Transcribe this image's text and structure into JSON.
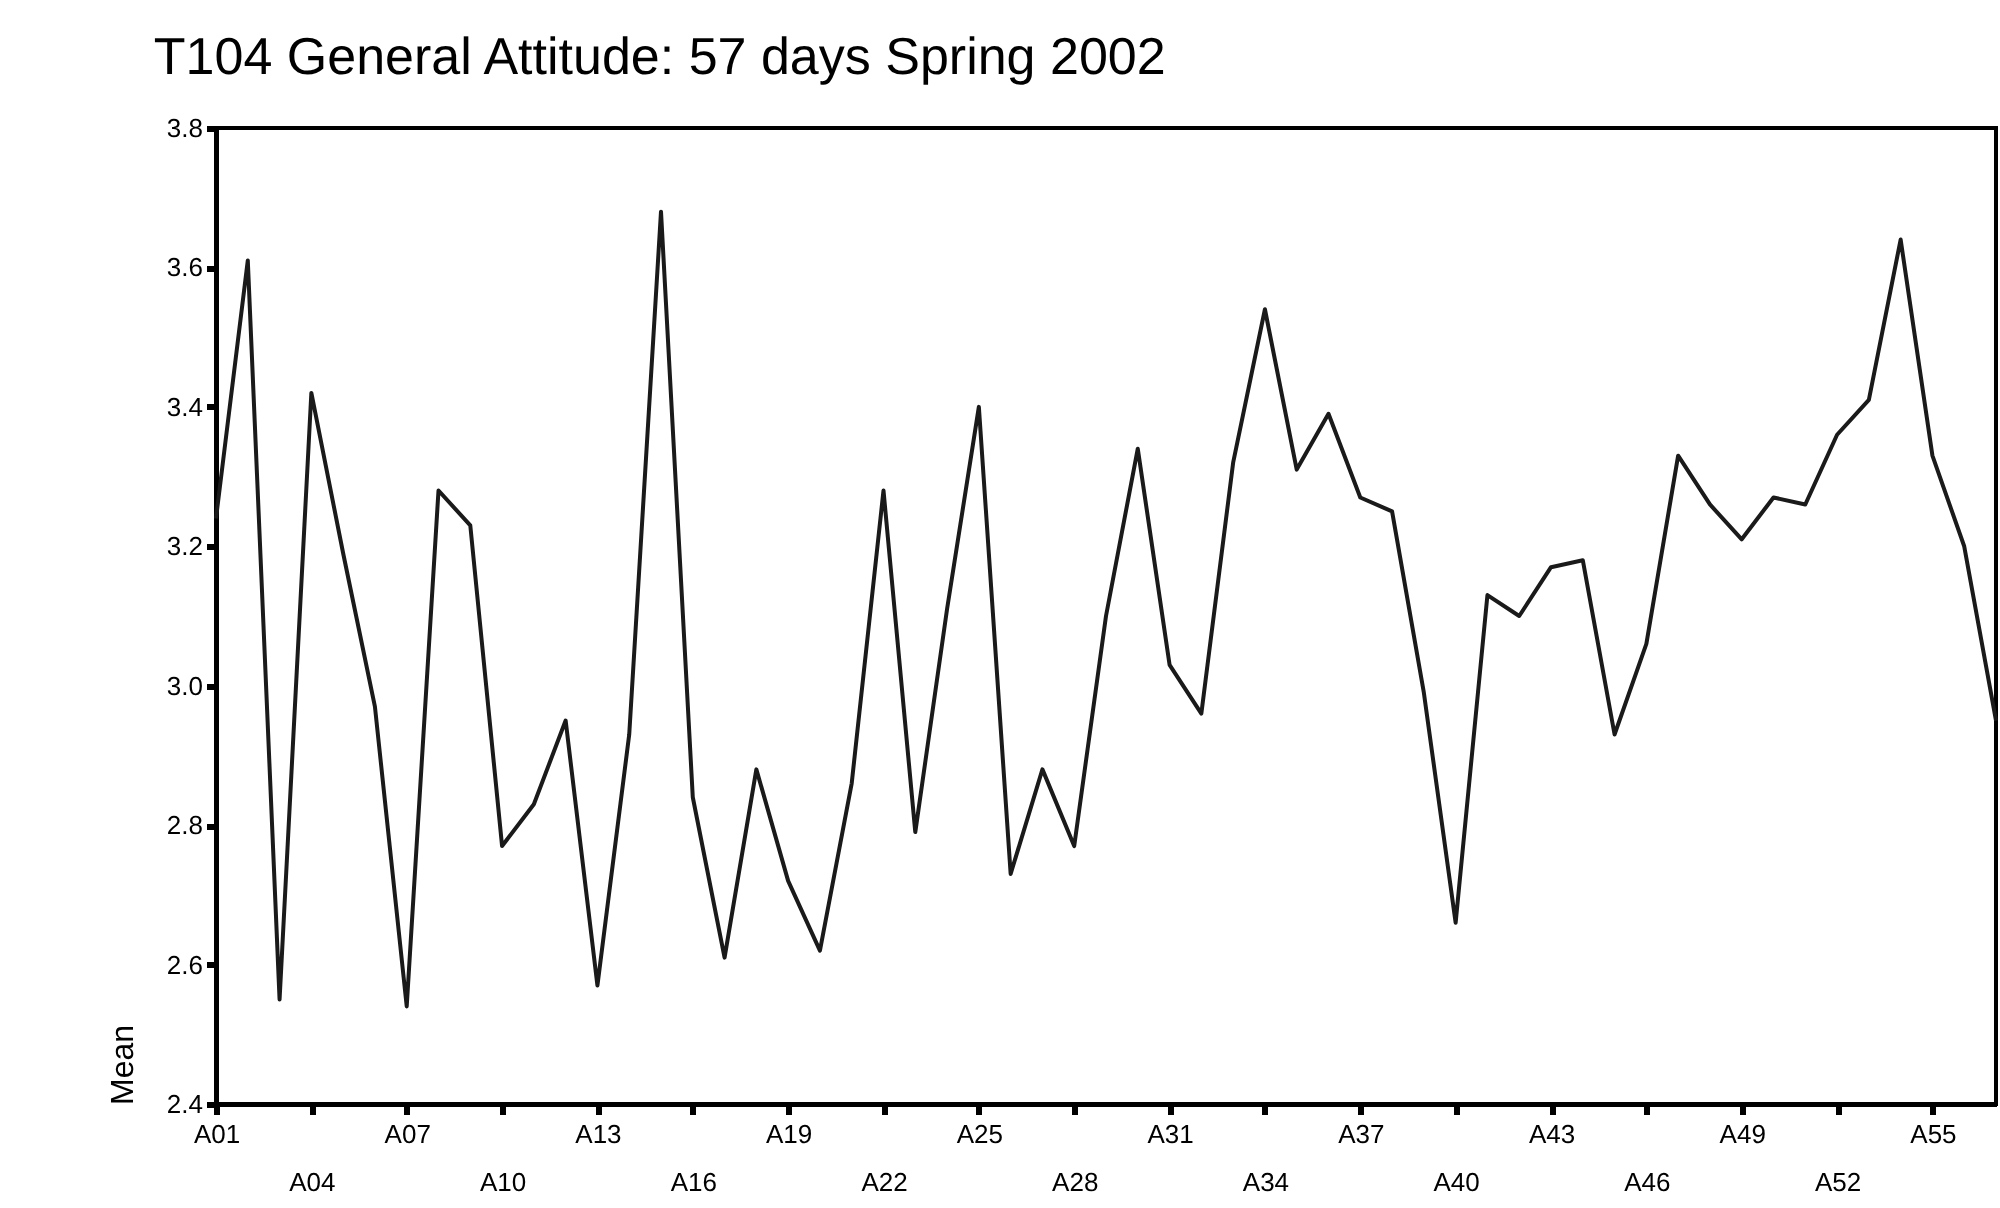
{
  "chart_data": {
    "type": "line",
    "title": "T104 General Attitude: 57 days Spring 2002",
    "ylabel": "Mean",
    "categories": [
      "A01",
      null,
      null,
      "A04",
      null,
      null,
      "A07",
      null,
      null,
      "A10",
      null,
      null,
      "A13",
      null,
      null,
      "A16",
      null,
      null,
      "A19",
      null,
      null,
      "A22",
      null,
      null,
      "A25",
      null,
      null,
      "A28",
      null,
      null,
      "A31",
      null,
      null,
      "A34",
      null,
      null,
      "A37",
      null,
      null,
      "A40",
      null,
      null,
      "A43",
      null,
      null,
      "A46",
      null,
      null,
      "A49",
      null,
      null,
      "A52",
      null,
      null,
      "A55",
      null,
      null
    ],
    "series": [
      {
        "color": "#1a1a1a",
        "values": [
          3.24,
          3.61,
          2.55,
          3.42,
          3.19,
          2.97,
          2.54,
          3.28,
          3.23,
          2.77,
          2.83,
          2.95,
          2.57,
          2.93,
          3.68,
          2.84,
          2.61,
          2.88,
          2.72,
          2.62,
          2.86,
          3.28,
          2.79,
          3.11,
          3.4,
          2.73,
          2.88,
          2.77,
          3.1,
          3.34,
          3.03,
          2.96,
          3.32,
          3.54,
          3.31,
          3.39,
          3.27,
          3.25,
          2.99,
          2.66,
          3.13,
          3.1,
          3.17,
          3.18,
          2.93,
          3.06,
          3.33,
          3.26,
          3.21,
          3.27,
          3.26,
          3.36,
          3.41,
          3.64,
          3.33,
          3.2,
          2.95
        ]
      }
    ],
    "ylim": [
      2.4,
      3.8
    ],
    "yticks": [
      2.4,
      2.6,
      2.8,
      {
        "value": 3,
        "label": "3.0"
      },
      3.2,
      3.4,
      3.6,
      3.8
    ],
    "grid": false
  }
}
